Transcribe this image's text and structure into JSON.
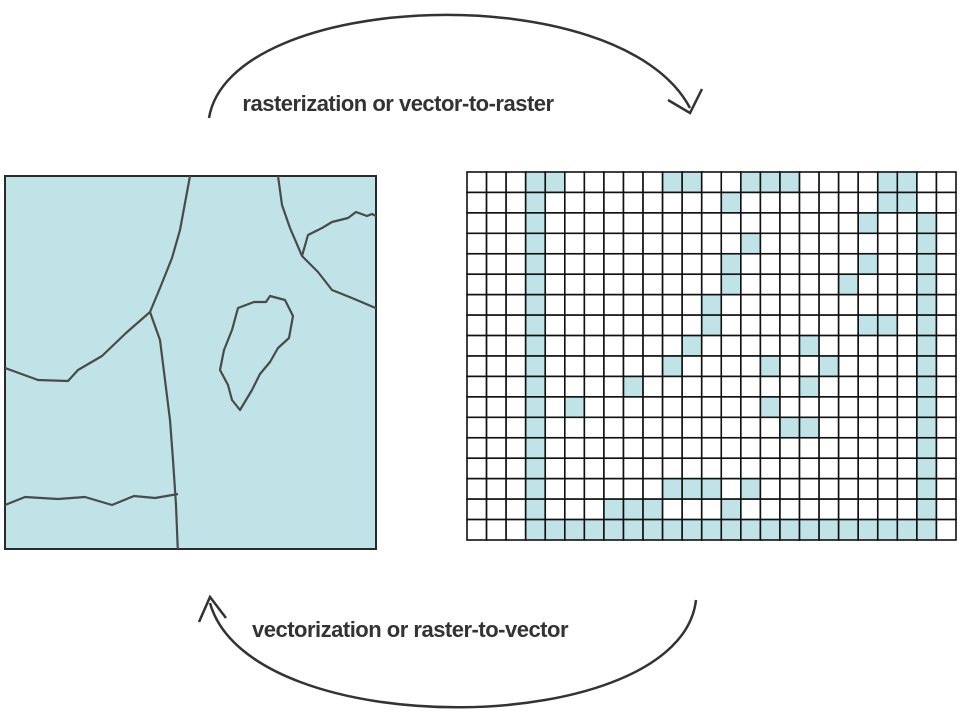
{
  "diagram": {
    "top_label": "rasterization or vector-to-raster",
    "bottom_label": "vectorization or raster-to-vector",
    "colors": {
      "fill": "#bfe3e6",
      "line": "#3c3c3c",
      "arrow": "#333333",
      "grid_line": "#111111",
      "cell_empty": "#ffffff"
    },
    "raster_grid": {
      "rows": 18,
      "cols": 25,
      "filled_cells": [
        [
          0,
          3
        ],
        [
          0,
          4
        ],
        [
          0,
          10
        ],
        [
          0,
          11
        ],
        [
          0,
          14
        ],
        [
          0,
          15
        ],
        [
          0,
          16
        ],
        [
          0,
          21
        ],
        [
          0,
          22
        ],
        [
          1,
          3
        ],
        [
          1,
          13
        ],
        [
          1,
          21
        ],
        [
          1,
          22
        ],
        [
          2,
          3
        ],
        [
          2,
          20
        ],
        [
          2,
          23
        ],
        [
          3,
          3
        ],
        [
          3,
          14
        ],
        [
          3,
          23
        ],
        [
          4,
          3
        ],
        [
          4,
          13
        ],
        [
          4,
          20
        ],
        [
          4,
          23
        ],
        [
          5,
          3
        ],
        [
          5,
          13
        ],
        [
          5,
          19
        ],
        [
          5,
          23
        ],
        [
          6,
          3
        ],
        [
          6,
          12
        ],
        [
          6,
          23
        ],
        [
          7,
          3
        ],
        [
          7,
          12
        ],
        [
          7,
          20
        ],
        [
          7,
          21
        ],
        [
          7,
          23
        ],
        [
          8,
          3
        ],
        [
          8,
          11
        ],
        [
          8,
          17
        ],
        [
          8,
          23
        ],
        [
          9,
          3
        ],
        [
          9,
          10
        ],
        [
          9,
          15
        ],
        [
          9,
          18
        ],
        [
          9,
          23
        ],
        [
          10,
          3
        ],
        [
          10,
          8
        ],
        [
          10,
          17
        ],
        [
          10,
          23
        ],
        [
          11,
          3
        ],
        [
          11,
          5
        ],
        [
          11,
          15
        ],
        [
          11,
          23
        ],
        [
          12,
          3
        ],
        [
          12,
          16
        ],
        [
          12,
          17
        ],
        [
          12,
          23
        ],
        [
          13,
          3
        ],
        [
          13,
          23
        ],
        [
          14,
          3
        ],
        [
          14,
          23
        ],
        [
          15,
          3
        ],
        [
          15,
          10
        ],
        [
          15,
          11
        ],
        [
          15,
          12
        ],
        [
          15,
          14
        ],
        [
          15,
          23
        ],
        [
          16,
          3
        ],
        [
          16,
          7
        ],
        [
          16,
          8
        ],
        [
          16,
          9
        ],
        [
          16,
          13
        ],
        [
          16,
          23
        ],
        [
          17,
          3
        ],
        [
          17,
          4
        ],
        [
          17,
          5
        ],
        [
          17,
          6
        ],
        [
          17,
          7
        ],
        [
          17,
          8
        ],
        [
          17,
          9
        ],
        [
          17,
          10
        ],
        [
          17,
          11
        ],
        [
          17,
          12
        ],
        [
          17,
          13
        ],
        [
          17,
          14
        ],
        [
          17,
          15
        ],
        [
          17,
          16
        ],
        [
          17,
          17
        ],
        [
          17,
          18
        ],
        [
          17,
          19
        ],
        [
          17,
          20
        ],
        [
          17,
          21
        ],
        [
          17,
          22
        ],
        [
          17,
          23
        ]
      ]
    }
  }
}
